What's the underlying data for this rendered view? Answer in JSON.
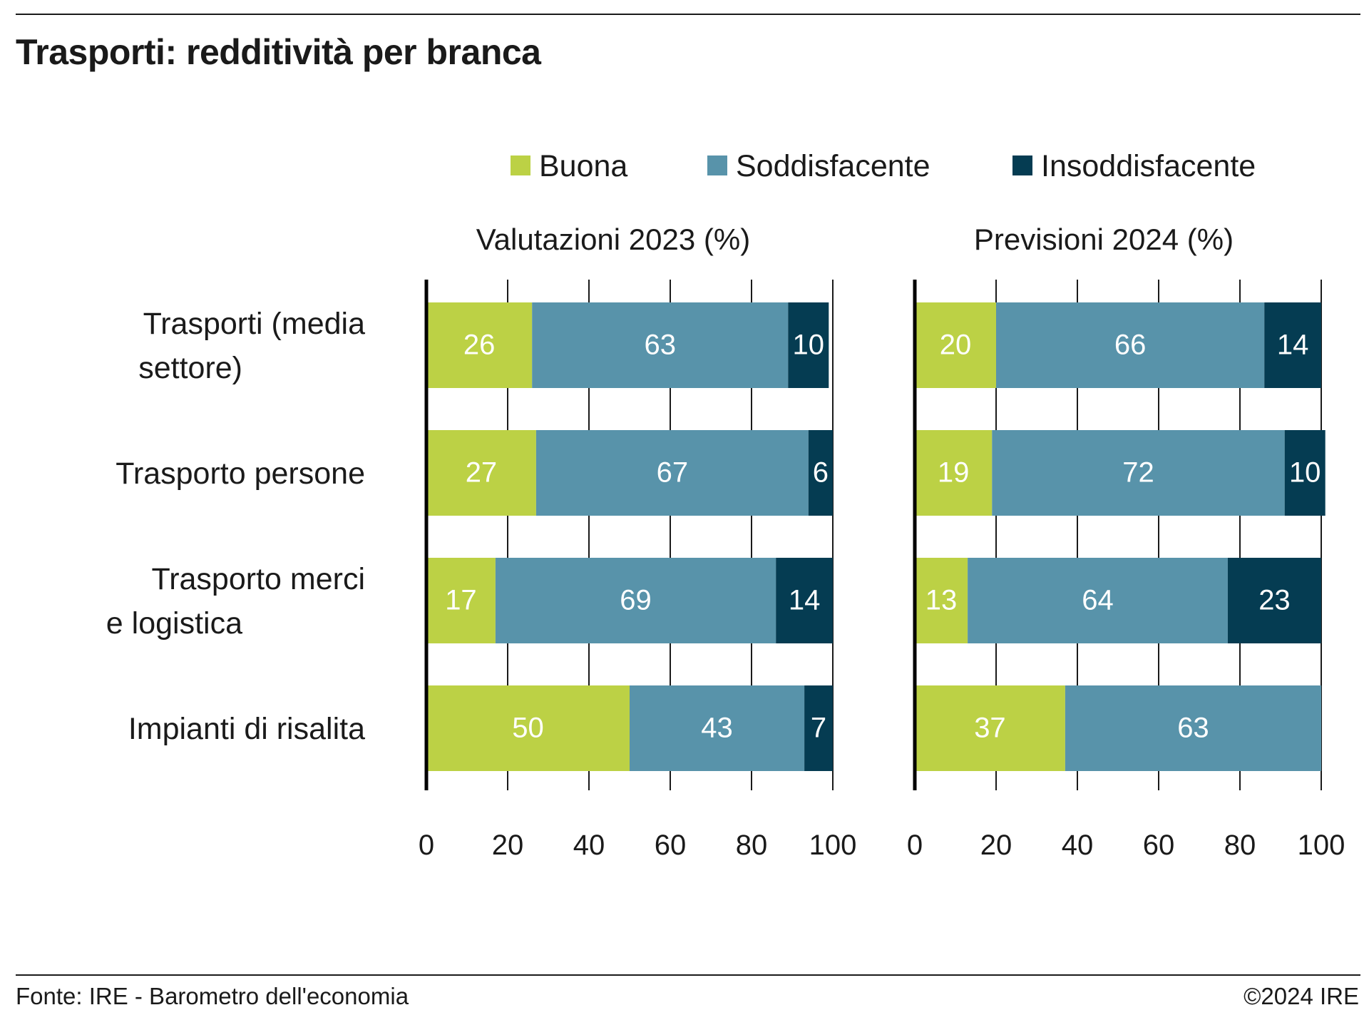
{
  "title": "Trasporti: redditività per branca",
  "source": "Fonte: IRE - Barometro dell'economia",
  "copyright": "©2024 IRE",
  "colors": {
    "buona": "#bcd145",
    "soddisfacente": "#5893aa",
    "insoddisfacente": "#053c52"
  },
  "chart_data": {
    "type": "bar",
    "orientation": "horizontal",
    "stacked": true,
    "legend": [
      "Buona",
      "Soddisfacente",
      "Insoddisfacente"
    ],
    "legend_position": "top",
    "categories": [
      [
        "Trasporti (media",
        "settore)"
      ],
      [
        "Trasporto persone"
      ],
      [
        "Trasporto merci",
        "e logistica"
      ],
      [
        "Impianti di risalita"
      ]
    ],
    "xlim": [
      0,
      100
    ],
    "xticks": [
      "0",
      "20",
      "40",
      "60",
      "80",
      "100"
    ],
    "grid": true,
    "panels": [
      {
        "title": "Valutazioni 2023 (%)",
        "series": [
          {
            "name": "Buona",
            "values": [
              26,
              27,
              17,
              50
            ]
          },
          {
            "name": "Soddisfacente",
            "values": [
              63,
              67,
              69,
              43
            ]
          },
          {
            "name": "Insoddisfacente",
            "values": [
              10,
              6,
              14,
              7
            ]
          }
        ]
      },
      {
        "title": "Previsioni 2024 (%)",
        "series": [
          {
            "name": "Buona",
            "values": [
              20,
              19,
              13,
              37
            ]
          },
          {
            "name": "Soddisfacente",
            "values": [
              66,
              72,
              64,
              63
            ]
          },
          {
            "name": "Insoddisfacente",
            "values": [
              14,
              10,
              23,
              0
            ]
          }
        ]
      }
    ]
  }
}
